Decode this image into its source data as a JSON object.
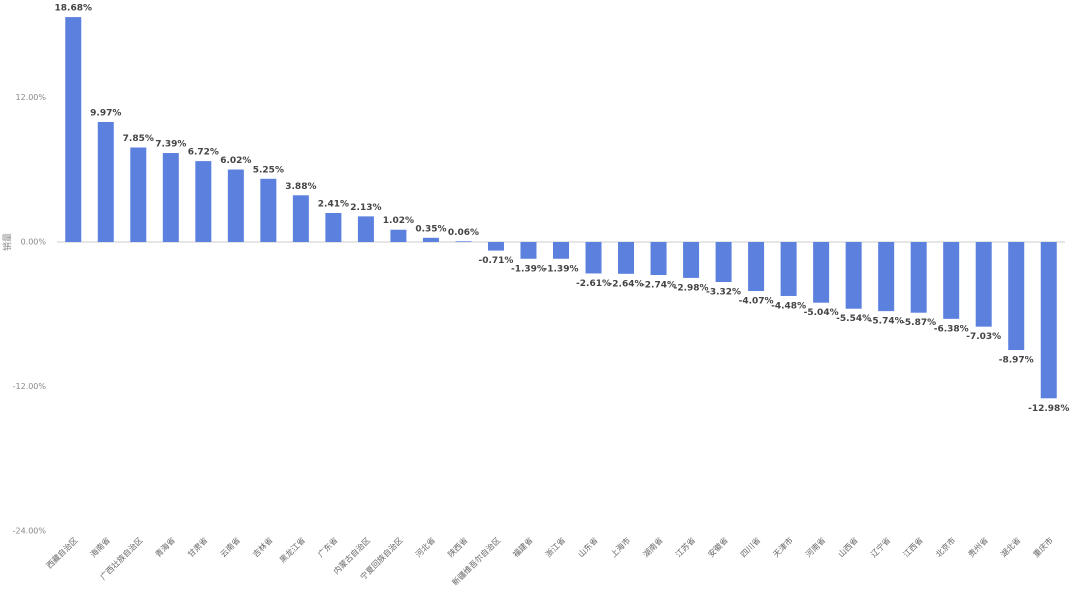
{
  "chart_data": {
    "type": "bar",
    "y_label": "销量",
    "categories": [
      "西藏自治区",
      "海南省",
      "广西壮族自治区",
      "青海省",
      "甘肃省",
      "云南省",
      "吉林省",
      "黑龙江省",
      "广东省",
      "内蒙古自治区",
      "宁夏回族自治区",
      "河北省",
      "陕西省",
      "新疆维吾尔自治区",
      "福建省",
      "浙江省",
      "山东省",
      "上海市",
      "湖南省",
      "江苏省",
      "安徽省",
      "四川省",
      "天津市",
      "河南省",
      "山西省",
      "辽宁省",
      "江西省",
      "北京市",
      "贵州省",
      "湖北省",
      "重庆市"
    ],
    "values": [
      18.68,
      9.97,
      7.85,
      7.39,
      6.72,
      6.02,
      5.25,
      3.88,
      2.41,
      2.13,
      1.02,
      0.35,
      0.06,
      -0.71,
      -1.39,
      -1.39,
      -2.61,
      -2.64,
      -2.74,
      -2.98,
      -3.32,
      -4.07,
      -4.48,
      -5.04,
      -5.54,
      -5.74,
      -5.87,
      -6.38,
      -7.03,
      -8.97,
      -12.98
    ],
    "value_labels": [
      "18.68%",
      "9.97%",
      "7.85%",
      "7.39%",
      "6.72%",
      "6.02%",
      "5.25%",
      "3.88%",
      "2.41%",
      "2.13%",
      "1.02%",
      "0.35%",
      "0.06%",
      "-0.71%",
      "-1.39%",
      "-1.39%",
      "-2.61%",
      "-2.64%",
      "-2.74%",
      "-2.98%",
      "-3.32%",
      "-4.07%",
      "-4.48%",
      "-5.04%",
      "-5.54%",
      "-5.74%",
      "-5.87%",
      "-6.38%",
      "-7.03%",
      "-8.97%",
      "-12.98%"
    ],
    "color": "#5b80de",
    "ylim": [
      -24,
      20
    ],
    "yticks": [
      {
        "value": 12,
        "label": "12.00%"
      },
      {
        "value": 0,
        "label": "0.00%"
      },
      {
        "value": -12,
        "label": "-12.00%"
      },
      {
        "value": -24,
        "label": "-24.00%"
      }
    ]
  }
}
